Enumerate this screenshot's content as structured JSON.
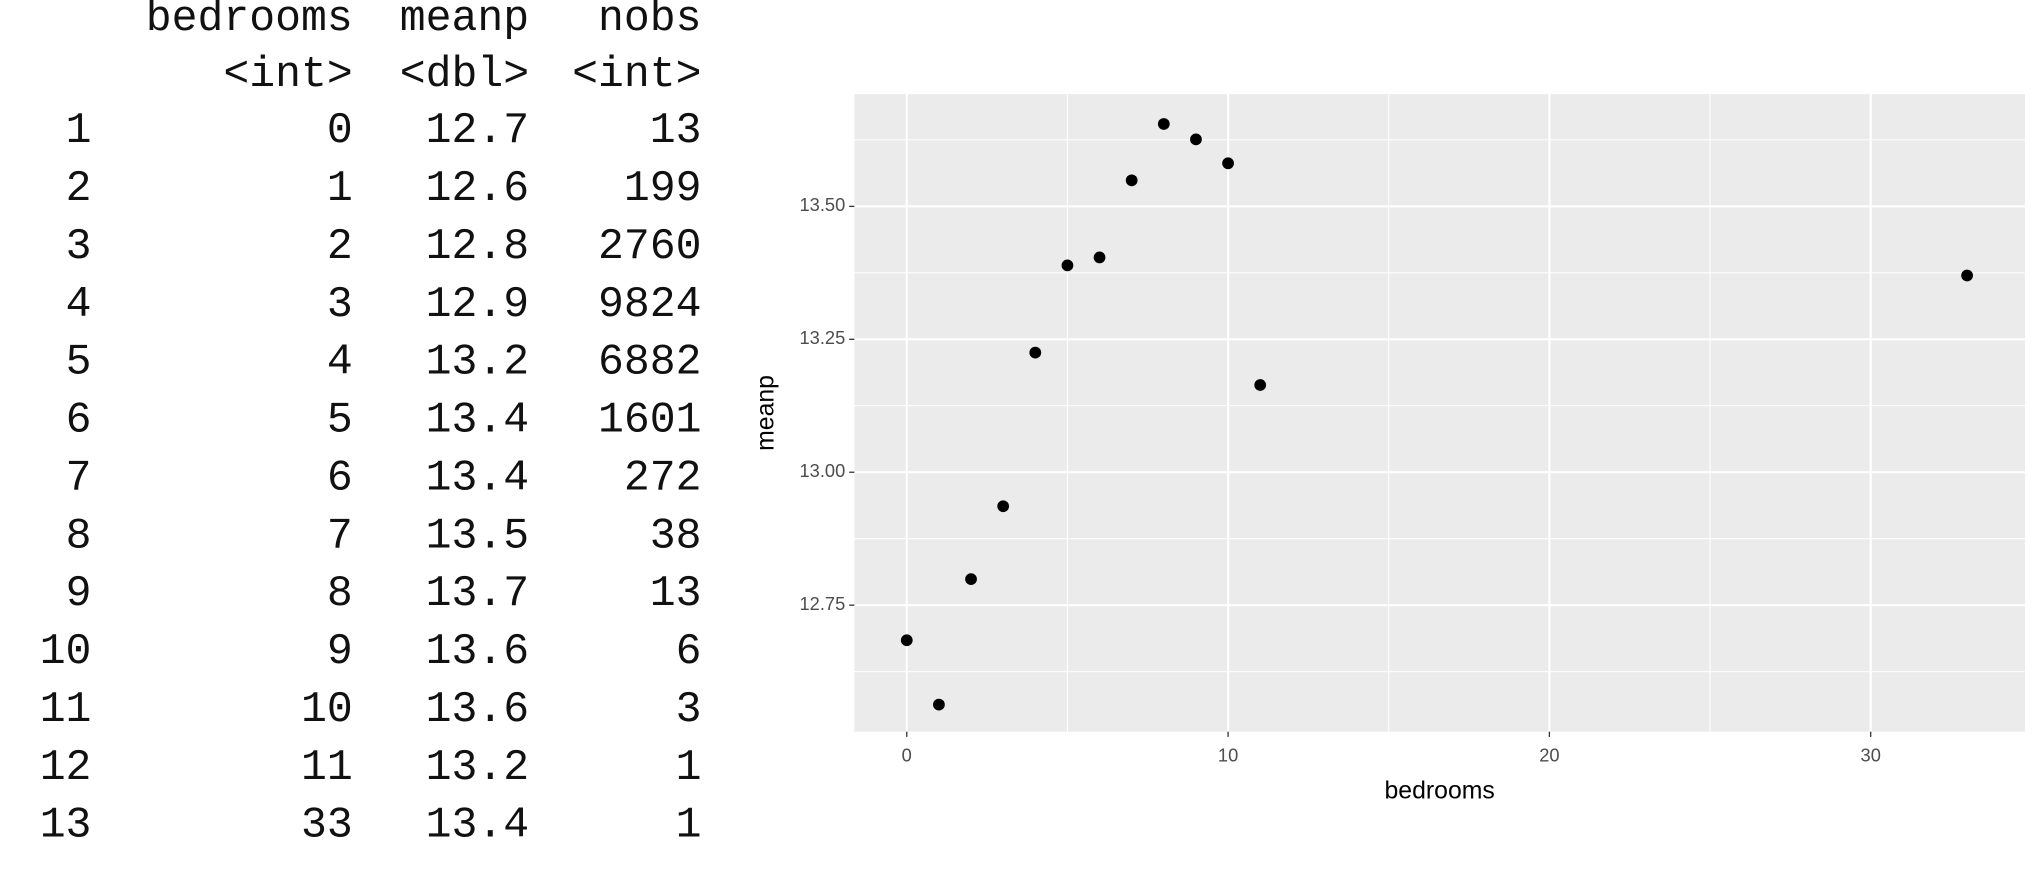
{
  "table": {
    "headers": [
      "bedrooms",
      "meanp",
      "nobs"
    ],
    "types": [
      "<int>",
      "<dbl>",
      "<int>"
    ],
    "rows": [
      [
        "1",
        "0",
        "12.7",
        "13"
      ],
      [
        "2",
        "1",
        "12.6",
        "199"
      ],
      [
        "3",
        "2",
        "12.8",
        "2760"
      ],
      [
        "4",
        "3",
        "12.9",
        "9824"
      ],
      [
        "5",
        "4",
        "13.2",
        "6882"
      ],
      [
        "6",
        "5",
        "13.4",
        "1601"
      ],
      [
        "7",
        "6",
        "13.4",
        "272"
      ],
      [
        "8",
        "7",
        "13.5",
        "38"
      ],
      [
        "9",
        "8",
        "13.7",
        "13"
      ],
      [
        "10",
        "9",
        "13.6",
        "6"
      ],
      [
        "11",
        "10",
        "13.6",
        "3"
      ],
      [
        "12",
        "11",
        "13.2",
        "1"
      ],
      [
        "13",
        "33",
        "13.4",
        "1"
      ]
    ]
  },
  "chart_data": {
    "type": "scatter",
    "x_label": "bedrooms",
    "y_label": "meanp",
    "x": [
      0,
      1,
      2,
      3,
      4,
      5,
      6,
      7,
      8,
      9,
      10,
      11,
      33
    ],
    "values": [
      12.684,
      12.563,
      12.799,
      12.936,
      13.225,
      13.389,
      13.404,
      13.549,
      13.655,
      13.626,
      13.581,
      13.164,
      13.37
    ],
    "color": "#000000",
    "xlim": [
      -1.63,
      34.8
    ],
    "ylim": [
      12.512,
      13.711
    ],
    "xticks": [
      0,
      10,
      20,
      30
    ],
    "yticks": [
      {
        "value": 12.75,
        "label": "12.75"
      },
      {
        "value": 13.0,
        "label": "13.00"
      },
      {
        "value": 13.25,
        "label": "13.25"
      },
      {
        "value": 13.5,
        "label": "13.50"
      }
    ],
    "grid": true,
    "minor_grid": true,
    "panel_color": "#ebebeb"
  }
}
